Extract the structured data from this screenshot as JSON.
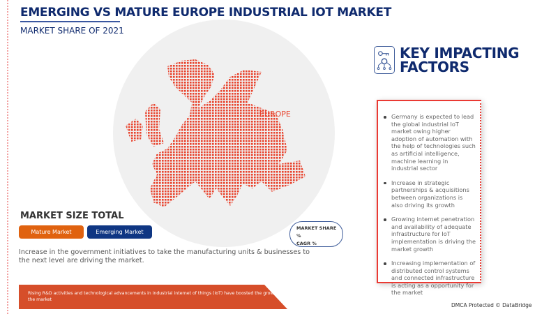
{
  "header": {
    "title": "EMERGING VS MATURE EUROPE INDUSTRIAL IOT MARKET",
    "subtitle": "MARKET SHARE OF 2021"
  },
  "map": {
    "region_label": "EUROPE",
    "color": "#e8442e"
  },
  "market_size": {
    "title": "MARKET SIZE TOTAL",
    "mature_label": "Mature Market",
    "emerging_label": "Emerging Market",
    "mature_color": "#e0620f",
    "emerging_color": "#0f3683"
  },
  "legend_pill": {
    "line1": "MARKET SHARE %",
    "line2": "CAGR %"
  },
  "description": "Increase in the government initiatives to take the manufacturing units & businesses to the next level are driving the market.",
  "banner": "Rising R&D activities and technological advancements in industrial internet of things (IoT) have boosted the growth of the market",
  "key_factors": {
    "title_line1": "KEY IMPACTING",
    "title_line2": "FACTORS",
    "icon": "key-gear-network-icon",
    "items": [
      "Germany is expected to lead the global industrial IoT market owing higher adoption of automation with the help of technologies such as artificial intelligence, machine learning in industrial sector",
      "Increase in strategic partnerships & acquisitions between organizations is also driving its growth",
      "Growing internet penetration and availability of adequate infrastructure for IoT implementation is driving the market growth",
      "Increasing implementation of distributed control systems and connected infrastructure is acting as a opportunity for the market"
    ]
  },
  "footer": {
    "dmca": "DMCA Protected © DataBridge"
  }
}
